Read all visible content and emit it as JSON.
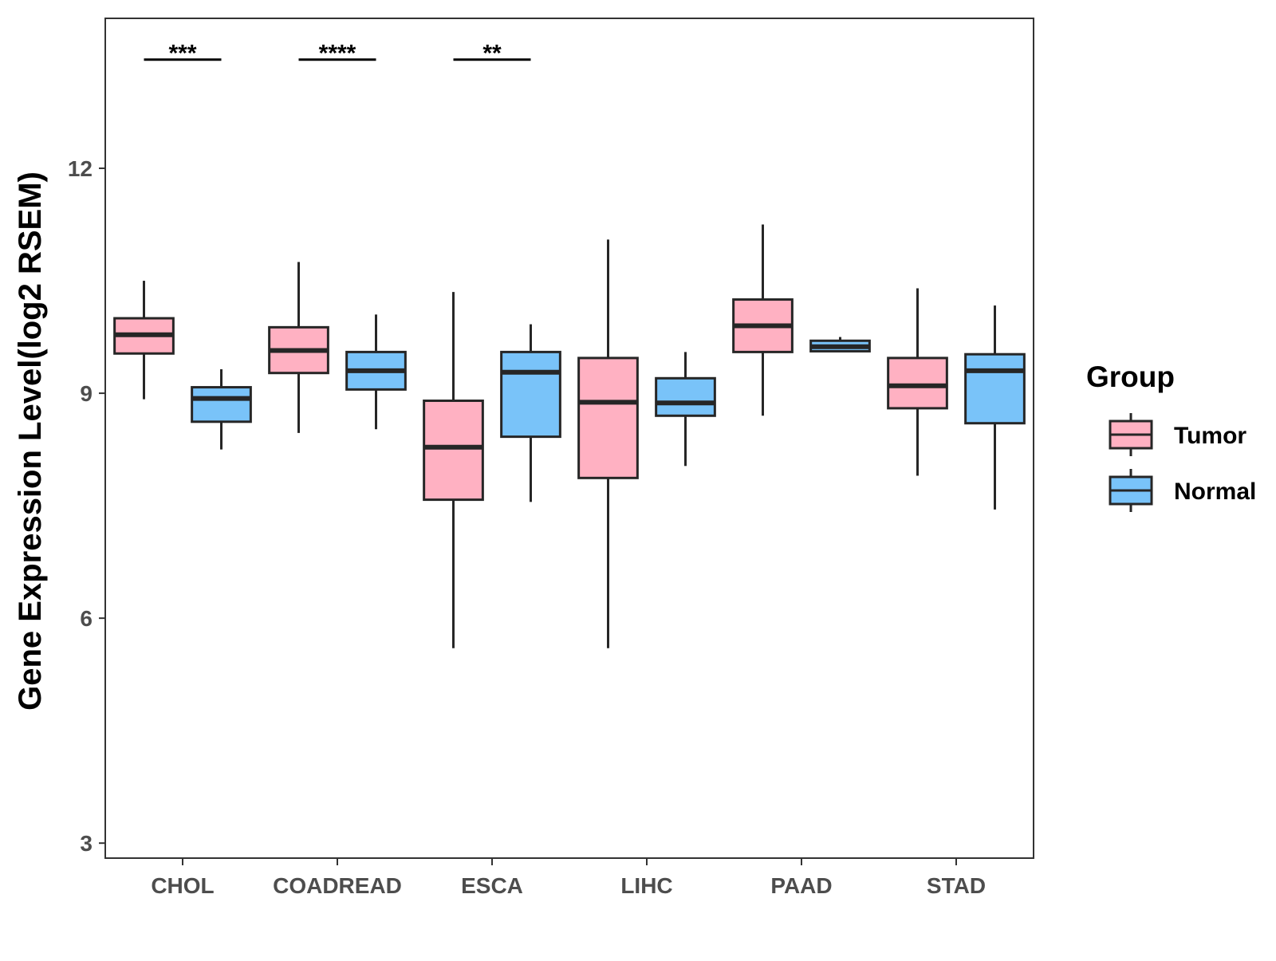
{
  "chart_data": {
    "type": "boxplot",
    "title": "",
    "xlabel": "",
    "ylabel": "Gene Expression Level(log2 RSEM)",
    "ylim": [
      2.8,
      14.0
    ],
    "yticks": [
      3,
      6,
      9,
      12
    ],
    "grid": false,
    "categories": [
      "CHOL",
      "COADREAD",
      "ESCA",
      "LIHC",
      "PAAD",
      "STAD"
    ],
    "series": [
      {
        "name": "Tumor",
        "color": "#FFB1C2",
        "boxes": [
          {
            "min": 8.92,
            "q1": 9.53,
            "median": 9.78,
            "q3": 10.0,
            "max": 10.5
          },
          {
            "min": 8.47,
            "q1": 9.27,
            "median": 9.57,
            "q3": 9.88,
            "max": 10.75
          },
          {
            "min": 5.6,
            "q1": 7.58,
            "median": 8.28,
            "q3": 8.9,
            "max": 10.35
          },
          {
            "min": 5.6,
            "q1": 7.87,
            "median": 8.88,
            "q3": 9.47,
            "max": 11.05
          },
          {
            "min": 8.7,
            "q1": 9.55,
            "median": 9.9,
            "q3": 10.25,
            "max": 11.25
          },
          {
            "min": 7.9,
            "q1": 8.8,
            "median": 9.1,
            "q3": 9.47,
            "max": 10.4
          }
        ]
      },
      {
        "name": "Normal",
        "color": "#79C3F9",
        "boxes": [
          {
            "min": 8.25,
            "q1": 8.62,
            "median": 8.93,
            "q3": 9.08,
            "max": 9.32
          },
          {
            "min": 8.52,
            "q1": 9.05,
            "median": 9.3,
            "q3": 9.55,
            "max": 10.05
          },
          {
            "min": 7.55,
            "q1": 8.42,
            "median": 9.28,
            "q3": 9.55,
            "max": 9.92
          },
          {
            "min": 8.03,
            "q1": 8.7,
            "median": 8.87,
            "q3": 9.2,
            "max": 9.55
          },
          {
            "min": 9.55,
            "q1": 9.56,
            "median": 9.62,
            "q3": 9.7,
            "max": 9.75
          },
          {
            "min": 7.45,
            "q1": 8.6,
            "median": 9.3,
            "q3": 9.52,
            "max": 10.17
          }
        ]
      }
    ],
    "significance": [
      {
        "category": "CHOL",
        "label": "***"
      },
      {
        "category": "COADREAD",
        "label": "****"
      },
      {
        "category": "ESCA",
        "label": "**"
      }
    ],
    "significance_level": 13.45,
    "legend": {
      "title": "Group",
      "position": "right",
      "entries": [
        "Tumor",
        "Normal"
      ]
    }
  }
}
